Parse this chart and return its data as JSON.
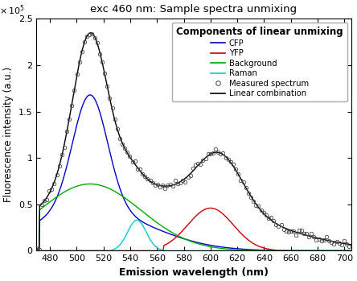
{
  "title": "exc 460 nm: Sample spectra unmixing",
  "xlabel": "Emission wavelength (nm)",
  "ylabel": "Fluorescence intensity (a.u.)",
  "xlim": [
    470,
    705
  ],
  "ylim": [
    0,
    2.5
  ],
  "x_ticks": [
    480,
    500,
    520,
    540,
    560,
    580,
    600,
    620,
    640,
    660,
    680,
    700
  ],
  "y_ticks": [
    0,
    0.5,
    1.0,
    1.5,
    2.0,
    2.5
  ],
  "y_tick_labels": [
    "0",
    "0.5",
    "1",
    "1.5",
    "2",
    "2.5"
  ],
  "legend_title": "Components of linear unmixing",
  "legend_entries": [
    "CFP",
    "YFP",
    "Background",
    "Raman",
    "Measured spectrum",
    "Linear combination"
  ],
  "colors": {
    "CFP": "#0000cc",
    "YFP": "#cc0000",
    "Background": "#00aa00",
    "Raman": "#00cccc",
    "measured": "#444444",
    "linear": "#000000"
  },
  "cfp_peak": 510,
  "cfp_sigma1": 13,
  "cfp_sigma2": 45,
  "cfp_amp": 1.68,
  "yfp_peak": 600,
  "yfp_sigma": 17,
  "yfp_amp": 0.46,
  "bg_peak": 510,
  "bg_sigma": 38,
  "bg_amp": 0.72,
  "raman_peak": 545,
  "raman_sigma": 7,
  "raman_amp": 0.33,
  "measured_peak1": 510,
  "measured_sigma1": 13,
  "measured_amp1": 2.35,
  "measured_peak2": 607,
  "measured_sigma2": 17,
  "measured_amp2": 0.82
}
